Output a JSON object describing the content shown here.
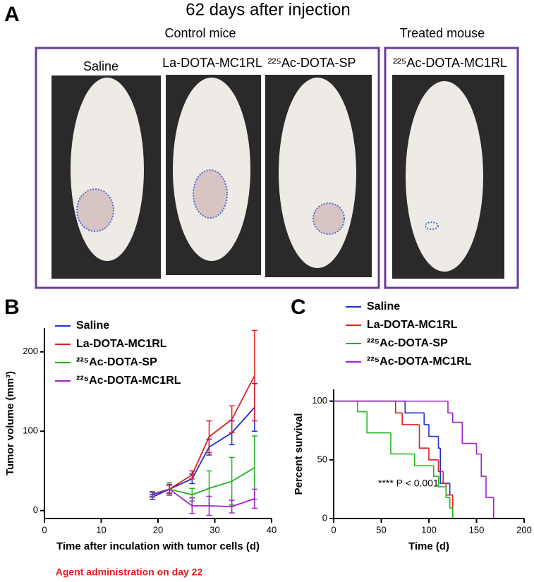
{
  "panel_a": {
    "label": "A",
    "title": "62 days after injection",
    "groups": [
      "Control mice",
      "Treated mouse"
    ],
    "photo_labels": [
      "Saline",
      "La-DOTA-MC1RL",
      "²²⁵Ac-DOTA-SP",
      "²²⁵Ac-DOTA-MC1RL"
    ]
  },
  "chart_data": [
    {
      "type": "line",
      "panel_label": "B",
      "x_label": "Time after inculation with tumor cells (d)",
      "y_label": "Tumor volume (mm³)",
      "annotation": "Agent administration on day 22",
      "annotation_color": "#e02020",
      "x": [
        19,
        22,
        26,
        29,
        33,
        37
      ],
      "xlim": [
        0,
        40
      ],
      "xticks": [
        0,
        10,
        20,
        30,
        40
      ],
      "ylim": [
        -10,
        230
      ],
      "yticks": [
        0,
        100,
        200
      ],
      "series": [
        {
          "name": "Saline",
          "color": "#1f2fd0",
          "values": [
            17,
            27,
            40,
            80,
            98,
            130
          ],
          "errors": [
            3,
            5,
            6,
            10,
            15,
            30
          ]
        },
        {
          "name": "La-DOTA-MC1RL",
          "color": "#e02020",
          "values": [
            20,
            27,
            45,
            93,
            115,
            170
          ],
          "errors": [
            3,
            5,
            5,
            20,
            17,
            57
          ]
        },
        {
          "name": "²²⁵Ac-DOTA-SP",
          "color": "#22b422",
          "values": [
            21,
            27,
            20,
            28,
            37,
            54
          ],
          "errors": [
            3,
            8,
            8,
            22,
            30,
            40
          ]
        },
        {
          "name": "²²⁵Ac-DOTA-MC1RL",
          "color": "#a020d0",
          "values": [
            20,
            27,
            6,
            6,
            5,
            15
          ],
          "errors": [
            3,
            6,
            10,
            12,
            8,
            12
          ]
        }
      ]
    },
    {
      "type": "survival",
      "panel_label": "C",
      "x_label": "Time (d)",
      "y_label": "Percent survival",
      "annotation": "**** P < 0.001",
      "xlim": [
        0,
        200
      ],
      "xticks": [
        0,
        50,
        100,
        150,
        200
      ],
      "ylim": [
        0,
        110
      ],
      "yticks": [
        0,
        50,
        100
      ],
      "series": [
        {
          "name": "Saline",
          "color": "#1f2fd0",
          "x": [
            0,
            75,
            95,
            100,
            110,
            112,
            122,
            125
          ],
          "values": [
            100,
            90,
            80,
            70,
            60,
            30,
            20,
            0
          ]
        },
        {
          "name": "La-DOTA-MC1RL",
          "color": "#e02020",
          "x": [
            0,
            65,
            72,
            90,
            100,
            110,
            115,
            118,
            125
          ],
          "values": [
            100,
            90,
            80,
            60,
            50,
            40,
            30,
            20,
            0
          ]
        },
        {
          "name": "²²⁵Ac-DOTA-SP",
          "color": "#22b422",
          "x": [
            0,
            25,
            35,
            60,
            85,
            105,
            110,
            118,
            122,
            125
          ],
          "values": [
            100,
            91,
            73,
            55,
            45,
            36,
            27,
            18,
            9,
            0
          ]
        },
        {
          "name": "²²⁵Ac-DOTA-MC1RL",
          "color": "#a020d0",
          "x": [
            0,
            120,
            125,
            135,
            150,
            155,
            160,
            168
          ],
          "values": [
            100,
            90,
            82,
            64,
            55,
            36,
            18,
            0
          ]
        }
      ]
    }
  ]
}
